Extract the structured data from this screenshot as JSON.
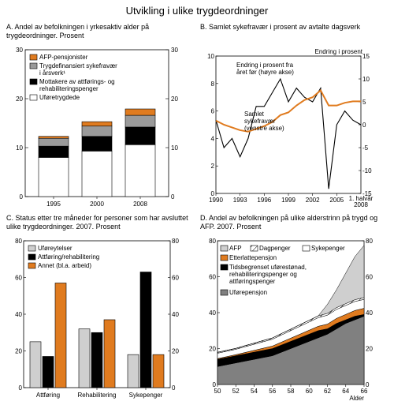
{
  "title": "Utvikling i ulike trygdeordninger",
  "colors": {
    "orange": "#e07b1f",
    "grey": "#9a9a9a",
    "black": "#000000",
    "white": "#ffffff",
    "lightgrey": "#cfcfcf",
    "border": "#000000"
  },
  "panelA": {
    "title": "A.  Andel av befolkningen i yrkesaktiv alder på trygdeordninger. Prosent",
    "ylim": [
      0,
      30
    ],
    "ystep": 10,
    "categories": [
      "1995",
      "2000",
      "2008"
    ],
    "legend": [
      {
        "label": "AFP-pensjonister",
        "color": "#e07b1f"
      },
      {
        "label": "Trygdefinansiert sykefravær i årsverk¹",
        "color": "#9a9a9a"
      },
      {
        "label": "Mottakere av attførings-  og rehabiliteringspenger",
        "color": "#000000"
      },
      {
        "label": "Uføretrygdede",
        "color": "#ffffff"
      }
    ],
    "stacks": [
      {
        "white": 8.0,
        "black": 2.3,
        "grey": 1.6,
        "orange": 0.4
      },
      {
        "white": 9.3,
        "black": 3.0,
        "grey": 2.1,
        "orange": 0.9
      },
      {
        "white": 10.6,
        "black": 3.6,
        "grey": 2.4,
        "orange": 1.3
      }
    ]
  },
  "panelB": {
    "title": "B.  Samlet sykefravær i prosent av avtalte dagsverk",
    "right_label": "Endring i prosent",
    "yLeft": {
      "lim": [
        0,
        10
      ],
      "step": 2
    },
    "yRight": {
      "lim": [
        -15,
        15
      ],
      "step": 5
    },
    "xlabels": [
      "1990",
      "1993",
      "1996",
      "1999",
      "2002",
      "2005",
      "1. halvår 2008"
    ],
    "annot1": "Endring i prosent fra året før (høyre akse)",
    "annot2": "Samlet sykefravær (venstre akse)",
    "line_black": [
      [
        1990,
        1
      ],
      [
        1991,
        -5
      ],
      [
        1992,
        -3
      ],
      [
        1993,
        -7
      ],
      [
        1994,
        -3
      ],
      [
        1995,
        4
      ],
      [
        1996,
        4
      ],
      [
        1997,
        7
      ],
      [
        1998,
        10
      ],
      [
        1999,
        5
      ],
      [
        2000,
        8
      ],
      [
        2001,
        6
      ],
      [
        2002,
        5
      ],
      [
        2003,
        8
      ],
      [
        2004,
        -14
      ],
      [
        2005,
        0
      ],
      [
        2006,
        3
      ],
      [
        2007,
        1
      ],
      [
        2008,
        0
      ]
    ],
    "line_orange": [
      [
        1990,
        5.3
      ],
      [
        1991,
        5.0
      ],
      [
        1992,
        4.8
      ],
      [
        1993,
        4.6
      ],
      [
        1994,
        4.5
      ],
      [
        1995,
        4.7
      ],
      [
        1996,
        4.9
      ],
      [
        1997,
        5.2
      ],
      [
        1998,
        5.7
      ],
      [
        1999,
        5.9
      ],
      [
        2000,
        6.4
      ],
      [
        2001,
        6.8
      ],
      [
        2002,
        7.0
      ],
      [
        2003,
        7.5
      ],
      [
        2004,
        6.4
      ],
      [
        2005,
        6.4
      ],
      [
        2006,
        6.6
      ],
      [
        2007,
        6.7
      ],
      [
        2008,
        6.7
      ]
    ]
  },
  "panelC": {
    "title": "C.  Status etter tre måneder for personer som har avsluttet ulike trygdeordninger. 2007. Prosent",
    "ylim": [
      0,
      80
    ],
    "ystep": 20,
    "categories": [
      "Attføring",
      "Rehabilitering",
      "Sykepenger"
    ],
    "legend": [
      {
        "label": "Uføreytelser",
        "color": "#cfcfcf"
      },
      {
        "label": "Attføring/rehabilitering",
        "color": "#000000"
      },
      {
        "label": "Annet (bl.a. arbeid)",
        "color": "#e07b1f"
      }
    ],
    "groups": [
      [
        25,
        17,
        57
      ],
      [
        32,
        30,
        37
      ],
      [
        18,
        63,
        18
      ]
    ]
  },
  "panelD": {
    "title": "D.  Andel av befolkningen på ulike alderstrinn på trygd og AFP. 2007. Prosent",
    "ylim": [
      0,
      80
    ],
    "ystep": 20,
    "xlabels": [
      "50",
      "52",
      "54",
      "56",
      "58",
      "60",
      "62",
      "64",
      "66"
    ],
    "xlabel": "Alder",
    "legend": [
      {
        "label": "AFP",
        "color": "#cfcfcf"
      },
      {
        "label": "Dagpenger",
        "color": "#ffffff",
        "hatch": true
      },
      {
        "label": "Sykepenger",
        "color": "#ffffff"
      },
      {
        "label": "Etterlattepensjon",
        "color": "#e07b1f"
      },
      {
        "label": "Tidsbegrenset uførestønad, rehabiliteringspenger og attføringspenger",
        "color": "#000000"
      },
      {
        "label": "Uførepensjon",
        "color": "#808080"
      }
    ],
    "ages": [
      50,
      51,
      52,
      53,
      54,
      55,
      56,
      57,
      58,
      59,
      60,
      61,
      62,
      63,
      64,
      65,
      66
    ],
    "series": {
      "ufore": [
        10,
        11,
        12,
        13,
        14,
        15,
        16,
        18,
        20,
        22,
        24,
        26,
        28,
        31,
        34,
        36,
        38
      ],
      "tidsb": [
        4,
        4,
        4,
        4,
        4,
        4,
        4,
        4,
        4,
        4,
        4,
        4,
        3,
        3,
        2,
        2,
        1
      ],
      "etterl": [
        0.4,
        0.5,
        0.6,
        0.8,
        1.0,
        1.2,
        1.4,
        1.6,
        1.8,
        2.0,
        2.2,
        2.4,
        2.6,
        2.8,
        3.0,
        3.2,
        3.4
      ],
      "syke": [
        3,
        3,
        3,
        3.2,
        3.4,
        3.6,
        3.8,
        4.0,
        4.2,
        4.4,
        4.6,
        4.8,
        5.0,
        5.0,
        5.0,
        5.0,
        5.0
      ],
      "dag": [
        0.5,
        0.5,
        0.5,
        0.6,
        0.6,
        0.7,
        0.7,
        0.8,
        0.8,
        0.9,
        0.9,
        1.0,
        1.0,
        1.0,
        1.0,
        1.0,
        1.0
      ],
      "afp": [
        0,
        0,
        0,
        0,
        0,
        0,
        0,
        0,
        0,
        0,
        0,
        0,
        5,
        10,
        17,
        24,
        29
      ]
    }
  }
}
